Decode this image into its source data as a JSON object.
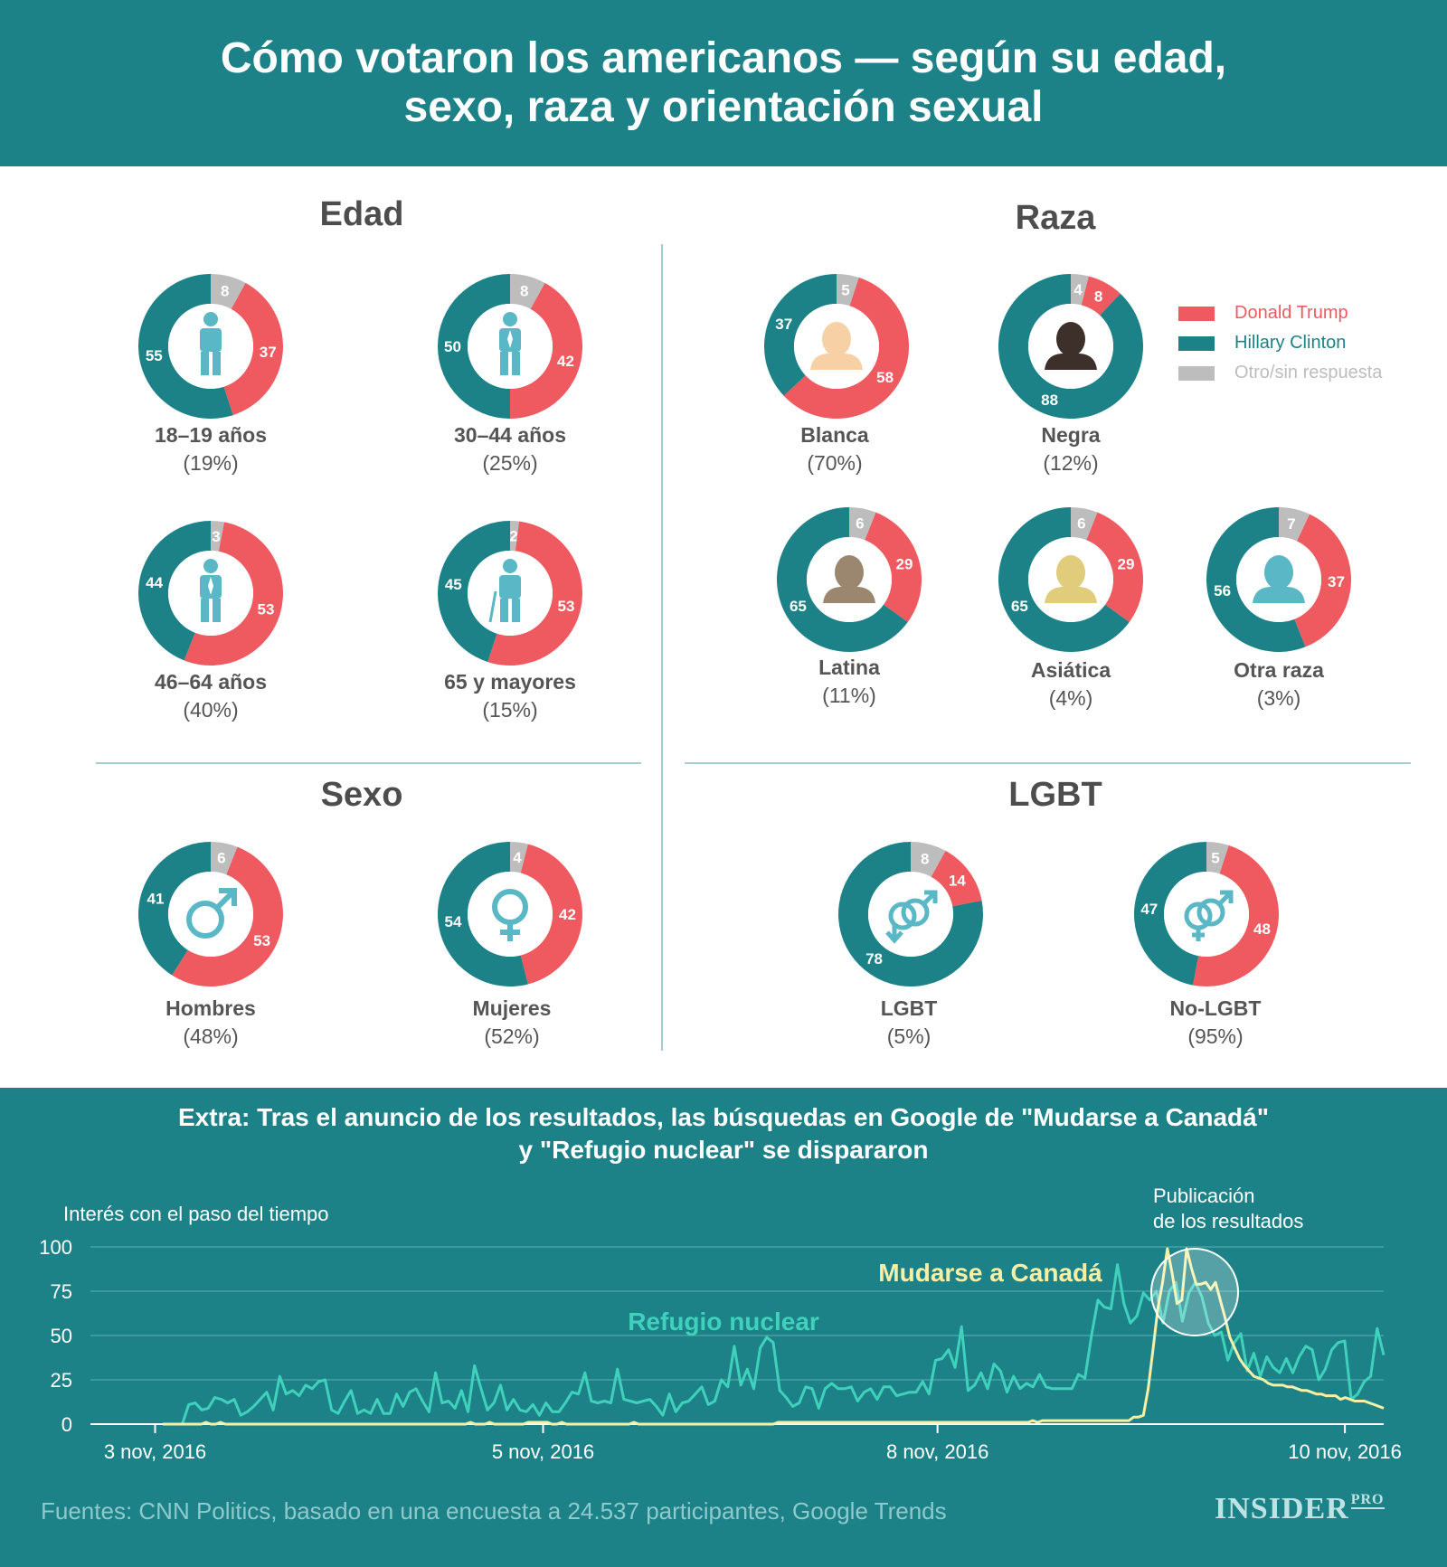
{
  "header": {
    "title_line1": "Cómo votaron los americanos — según su edad,",
    "title_line2": "sexo, raza y orientación sexual"
  },
  "colors": {
    "trump": "#ee5a5f",
    "clinton": "#1d8287",
    "other": "#bdbdbd",
    "icon": "#5ab7c6"
  },
  "legend": {
    "trump": "Donald Trump",
    "clinton": "Hillary Clinton",
    "other": "Otro/sin respuesta"
  },
  "sections": {
    "edad": "Edad",
    "raza": "Raza",
    "sexo": "Sexo",
    "lgbt": "LGBT"
  },
  "groups": [
    {
      "id": "edad-18",
      "section": "edad",
      "icon": "person-icon",
      "name": "18–19 años",
      "share": "(19%)",
      "trump": 37,
      "clinton": 55,
      "other": 8
    },
    {
      "id": "edad-30",
      "section": "edad",
      "icon": "person-tie-icon",
      "name": "30–44 años",
      "share": "(25%)",
      "trump": 42,
      "clinton": 50,
      "other": 8
    },
    {
      "id": "edad-46",
      "section": "edad",
      "icon": "person-suit-icon",
      "name": "46–64 años",
      "share": "(40%)",
      "trump": 53,
      "clinton": 44,
      "other": 3
    },
    {
      "id": "edad-65",
      "section": "edad",
      "icon": "elderly-icon",
      "name": "65  y mayores",
      "share": "(15%)",
      "trump": 53,
      "clinton": 45,
      "other": 2
    },
    {
      "id": "raza-blanca",
      "section": "raza",
      "icon": "head-icon",
      "name": "Blanca",
      "share": "(70%)",
      "trump": 58,
      "clinton": 37,
      "other": 5
    },
    {
      "id": "raza-negra",
      "section": "raza",
      "icon": "head-icon",
      "name": "Negra",
      "share": "(12%)",
      "trump": 8,
      "clinton": 88,
      "other": 4
    },
    {
      "id": "raza-latina",
      "section": "raza",
      "icon": "head-icon",
      "name": "Latina",
      "share": "(11%)",
      "trump": 29,
      "clinton": 65,
      "other": 6
    },
    {
      "id": "raza-asiatica",
      "section": "raza",
      "icon": "head-icon",
      "name": "Asiática",
      "share": "(4%)",
      "trump": 29,
      "clinton": 65,
      "other": 6
    },
    {
      "id": "raza-otra",
      "section": "raza",
      "icon": "head-icon",
      "name": "Otra raza",
      "share": "(3%)",
      "trump": 37,
      "clinton": 56,
      "other": 7
    },
    {
      "id": "sexo-hombres",
      "section": "sexo",
      "icon": "male-icon",
      "name": "Hombres",
      "share": "(48%)",
      "trump": 53,
      "clinton": 41,
      "other": 6
    },
    {
      "id": "sexo-mujeres",
      "section": "sexo",
      "icon": "female-icon",
      "name": "Mujeres",
      "share": "(52%)",
      "trump": 42,
      "clinton": 54,
      "other": 4
    },
    {
      "id": "lgbt-si",
      "section": "lgbt",
      "icon": "lgbt-icon",
      "name": "LGBT",
      "share": "(5%)",
      "trump": 14,
      "clinton": 78,
      "other": 8
    },
    {
      "id": "lgbt-no",
      "section": "lgbt",
      "icon": "hetero-icon",
      "name": "No-LGBT",
      "share": "(95%)",
      "trump": 48,
      "clinton": 47,
      "other": 5
    }
  ],
  "head_colors": [
    "#f8d0a6",
    "#3d302b",
    "#9b8670",
    "#e0cc7a",
    "#5ab7c6"
  ],
  "extra": {
    "title_line1": "Extra: Tras el anuncio de los resultados, las búsquedas en Google de \"Mudarse a Canadá\"",
    "title_line2": "y \"Refugio nuclear\" se dispararon"
  },
  "chart_data": {
    "type": "line",
    "ylabel": "Interés con el paso del tiempo",
    "ylim": [
      0,
      100
    ],
    "yticks": [
      "0",
      "25",
      "50",
      "75",
      "100"
    ],
    "xticks": [
      "3 nov, 2016",
      "5 nov, 2016",
      "8 nov, 2016",
      "10 nov, 2016"
    ],
    "xtick_positions": [
      0.05,
      0.35,
      0.655,
      0.97
    ],
    "annotation": "Publicación de los resultados",
    "annotation_line1": "Publicación",
    "annotation_line2": "de los resultados",
    "series": [
      {
        "name": "Mudarse a Canadá",
        "color": "#f5f0a8",
        "values": [
          0,
          0,
          0,
          0,
          0,
          0,
          0,
          0,
          0,
          1,
          0,
          0,
          1,
          0,
          0,
          0,
          0,
          0,
          0,
          0,
          0,
          0,
          0,
          0,
          0,
          0,
          0,
          0,
          0,
          0,
          0,
          0,
          0,
          0,
          0,
          0,
          0,
          0,
          0,
          0,
          0,
          0,
          0,
          0,
          0,
          0,
          0,
          0,
          0,
          0,
          0,
          0,
          0,
          0,
          0,
          0,
          0,
          0,
          0,
          0,
          0,
          0,
          0,
          0,
          1,
          0,
          0,
          0,
          1,
          0,
          0,
          0,
          0,
          0,
          0,
          0,
          1,
          1,
          1,
          1,
          1,
          0,
          0,
          1,
          0,
          0,
          0,
          0,
          0,
          0,
          0,
          0,
          0,
          0,
          0,
          0,
          0,
          0,
          1,
          0,
          0,
          0,
          0,
          0,
          0,
          0,
          0,
          0,
          0,
          0,
          0,
          0,
          0,
          0,
          0,
          0,
          0,
          0,
          0,
          0,
          0,
          0,
          0,
          0,
          0,
          0,
          0,
          0,
          1,
          1,
          1,
          1,
          1,
          1,
          1,
          1,
          1,
          1,
          1,
          1,
          1,
          1,
          1,
          1,
          1,
          1,
          1,
          1,
          1,
          1,
          1,
          1,
          1,
          1,
          1,
          1,
          1,
          1,
          1,
          1,
          1,
          1,
          1,
          1,
          1,
          1,
          1,
          1,
          1,
          1,
          1,
          1,
          1,
          1,
          1,
          1,
          1,
          1,
          1,
          1,
          1,
          2,
          1,
          2,
          2,
          2,
          2,
          2,
          2,
          2,
          2,
          2,
          2,
          2,
          2,
          2,
          2,
          2,
          2,
          2,
          2,
          2,
          4,
          4,
          5,
          20,
          42,
          65,
          80,
          99,
          85,
          68,
          70,
          99,
          88,
          79,
          79,
          80,
          76,
          80,
          70,
          60,
          49,
          43,
          37,
          33,
          30,
          27,
          26,
          25,
          23,
          22,
          22,
          22,
          21,
          21,
          20,
          19,
          19,
          18,
          17,
          17,
          16,
          16,
          16,
          14,
          15,
          14,
          13,
          13,
          13,
          12,
          11,
          10,
          9
        ]
      },
      {
        "name": "Refugio nuclear",
        "color": "#3fd1bc",
        "values": [
          0,
          0,
          0,
          0,
          11,
          12,
          8,
          9,
          15,
          14,
          12,
          14,
          5,
          7,
          10,
          14,
          18,
          8,
          27,
          17,
          19,
          16,
          22,
          20,
          24,
          25,
          8,
          6,
          13,
          19,
          6,
          8,
          6,
          14,
          6,
          6,
          17,
          10,
          18,
          20,
          13,
          7,
          29,
          12,
          13,
          9,
          19,
          7,
          33,
          20,
          8,
          12,
          22,
          8,
          14,
          8,
          7,
          11,
          5,
          12,
          7,
          7,
          12,
          18,
          17,
          29,
          13,
          12,
          13,
          12,
          31,
          14,
          13,
          12,
          13,
          14,
          10,
          5,
          17,
          7,
          12,
          13,
          17,
          21,
          11,
          13,
          25,
          21,
          44,
          22,
          31,
          20,
          43,
          49,
          46,
          19,
          15,
          10,
          12,
          21,
          20,
          9,
          20,
          23,
          20,
          20,
          21,
          13,
          18,
          20,
          14,
          21,
          21,
          16,
          17,
          18,
          18,
          24,
          17,
          36,
          37,
          42,
          32,
          55,
          19,
          22,
          29,
          20,
          34,
          30,
          18,
          27,
          20,
          23,
          21,
          28,
          21,
          20,
          20,
          20,
          20,
          28,
          26,
          50,
          70,
          66,
          65,
          90,
          68,
          57,
          61,
          74,
          70,
          75,
          57,
          75,
          80,
          58,
          74,
          80,
          72,
          57,
          50,
          52,
          36,
          46,
          51,
          30,
          40,
          27,
          38,
          32,
          29,
          37,
          29,
          38,
          44,
          42,
          25,
          31,
          42,
          46,
          47,
          14,
          17,
          24,
          27,
          54,
          39
        ]
      }
    ]
  },
  "footer": {
    "source": "Fuentes: CNN Politics, basado en una encuesta a 24.537 participantes, Google Trends",
    "logo_main": "INSIDER",
    "logo_pro": "PRO"
  }
}
